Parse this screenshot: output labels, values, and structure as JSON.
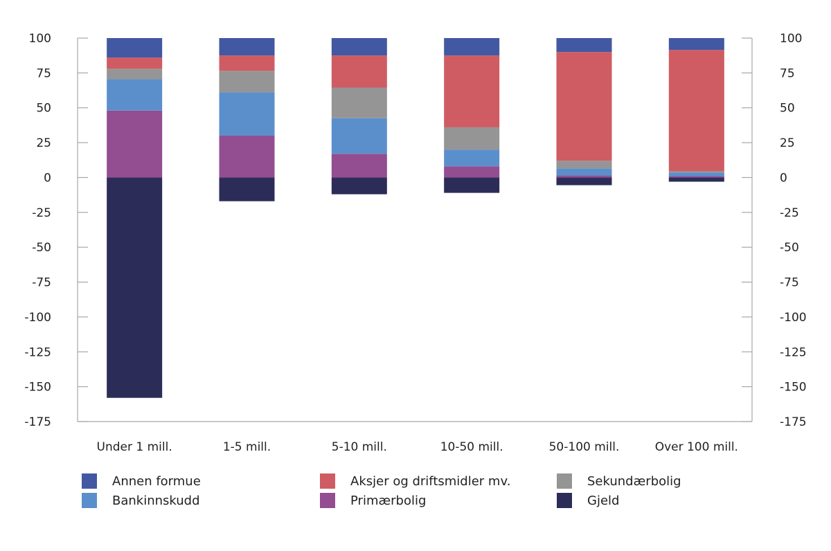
{
  "chart_data": {
    "type": "bar",
    "stacked": true,
    "title": "",
    "xlabel": "",
    "ylabel": "",
    "ylim": [
      -175,
      100
    ],
    "yticks": [
      100,
      75,
      50,
      25,
      0,
      -25,
      -50,
      -75,
      -100,
      -125,
      -150,
      -175
    ],
    "y_axis_both_sides": true,
    "grid": false,
    "legend_position": "bottom",
    "categories": [
      "Under 1 mill.",
      "1-5 mill.",
      "5-10 mill.",
      "10-50 mill.",
      "50-100 mill.",
      "Over 100 mill."
    ],
    "series": [
      {
        "name": "Gjeld",
        "color": "#2b2d58",
        "values": [
          -158,
          -17,
          -12,
          -11,
          -5.5,
          -3
        ]
      },
      {
        "name": "Primærbolig",
        "color": "#934d91",
        "values": [
          48,
          30,
          17,
          8,
          1.5,
          1
        ]
      },
      {
        "name": "Bankinnskudd",
        "color": "#5b8fcc",
        "values": [
          22.5,
          31,
          25.5,
          12,
          5,
          2.5
        ]
      },
      {
        "name": "Sekundærbolig",
        "color": "#969596",
        "values": [
          7.5,
          15.5,
          22,
          16,
          5.5,
          1
        ]
      },
      {
        "name": "Aksjer og driftsmidler mv.",
        "color": "#cf5c63",
        "values": [
          8,
          11,
          23,
          51.5,
          78,
          87
        ]
      },
      {
        "name": "Annen formue",
        "color": "#4358a2",
        "values": [
          14,
          12.5,
          12.5,
          12.5,
          10,
          8.5
        ]
      }
    ]
  },
  "legend": [
    {
      "label": "Annen formue",
      "color": "#4358a2"
    },
    {
      "label": "Aksjer og driftsmidler mv.",
      "color": "#cf5c63"
    },
    {
      "label": "Sekundærbolig",
      "color": "#969596"
    },
    {
      "label": "Bankinnskudd",
      "color": "#5b8fcc"
    },
    {
      "label": "Primærbolig",
      "color": "#934d91"
    },
    {
      "label": "Gjeld",
      "color": "#2b2d58"
    }
  ]
}
